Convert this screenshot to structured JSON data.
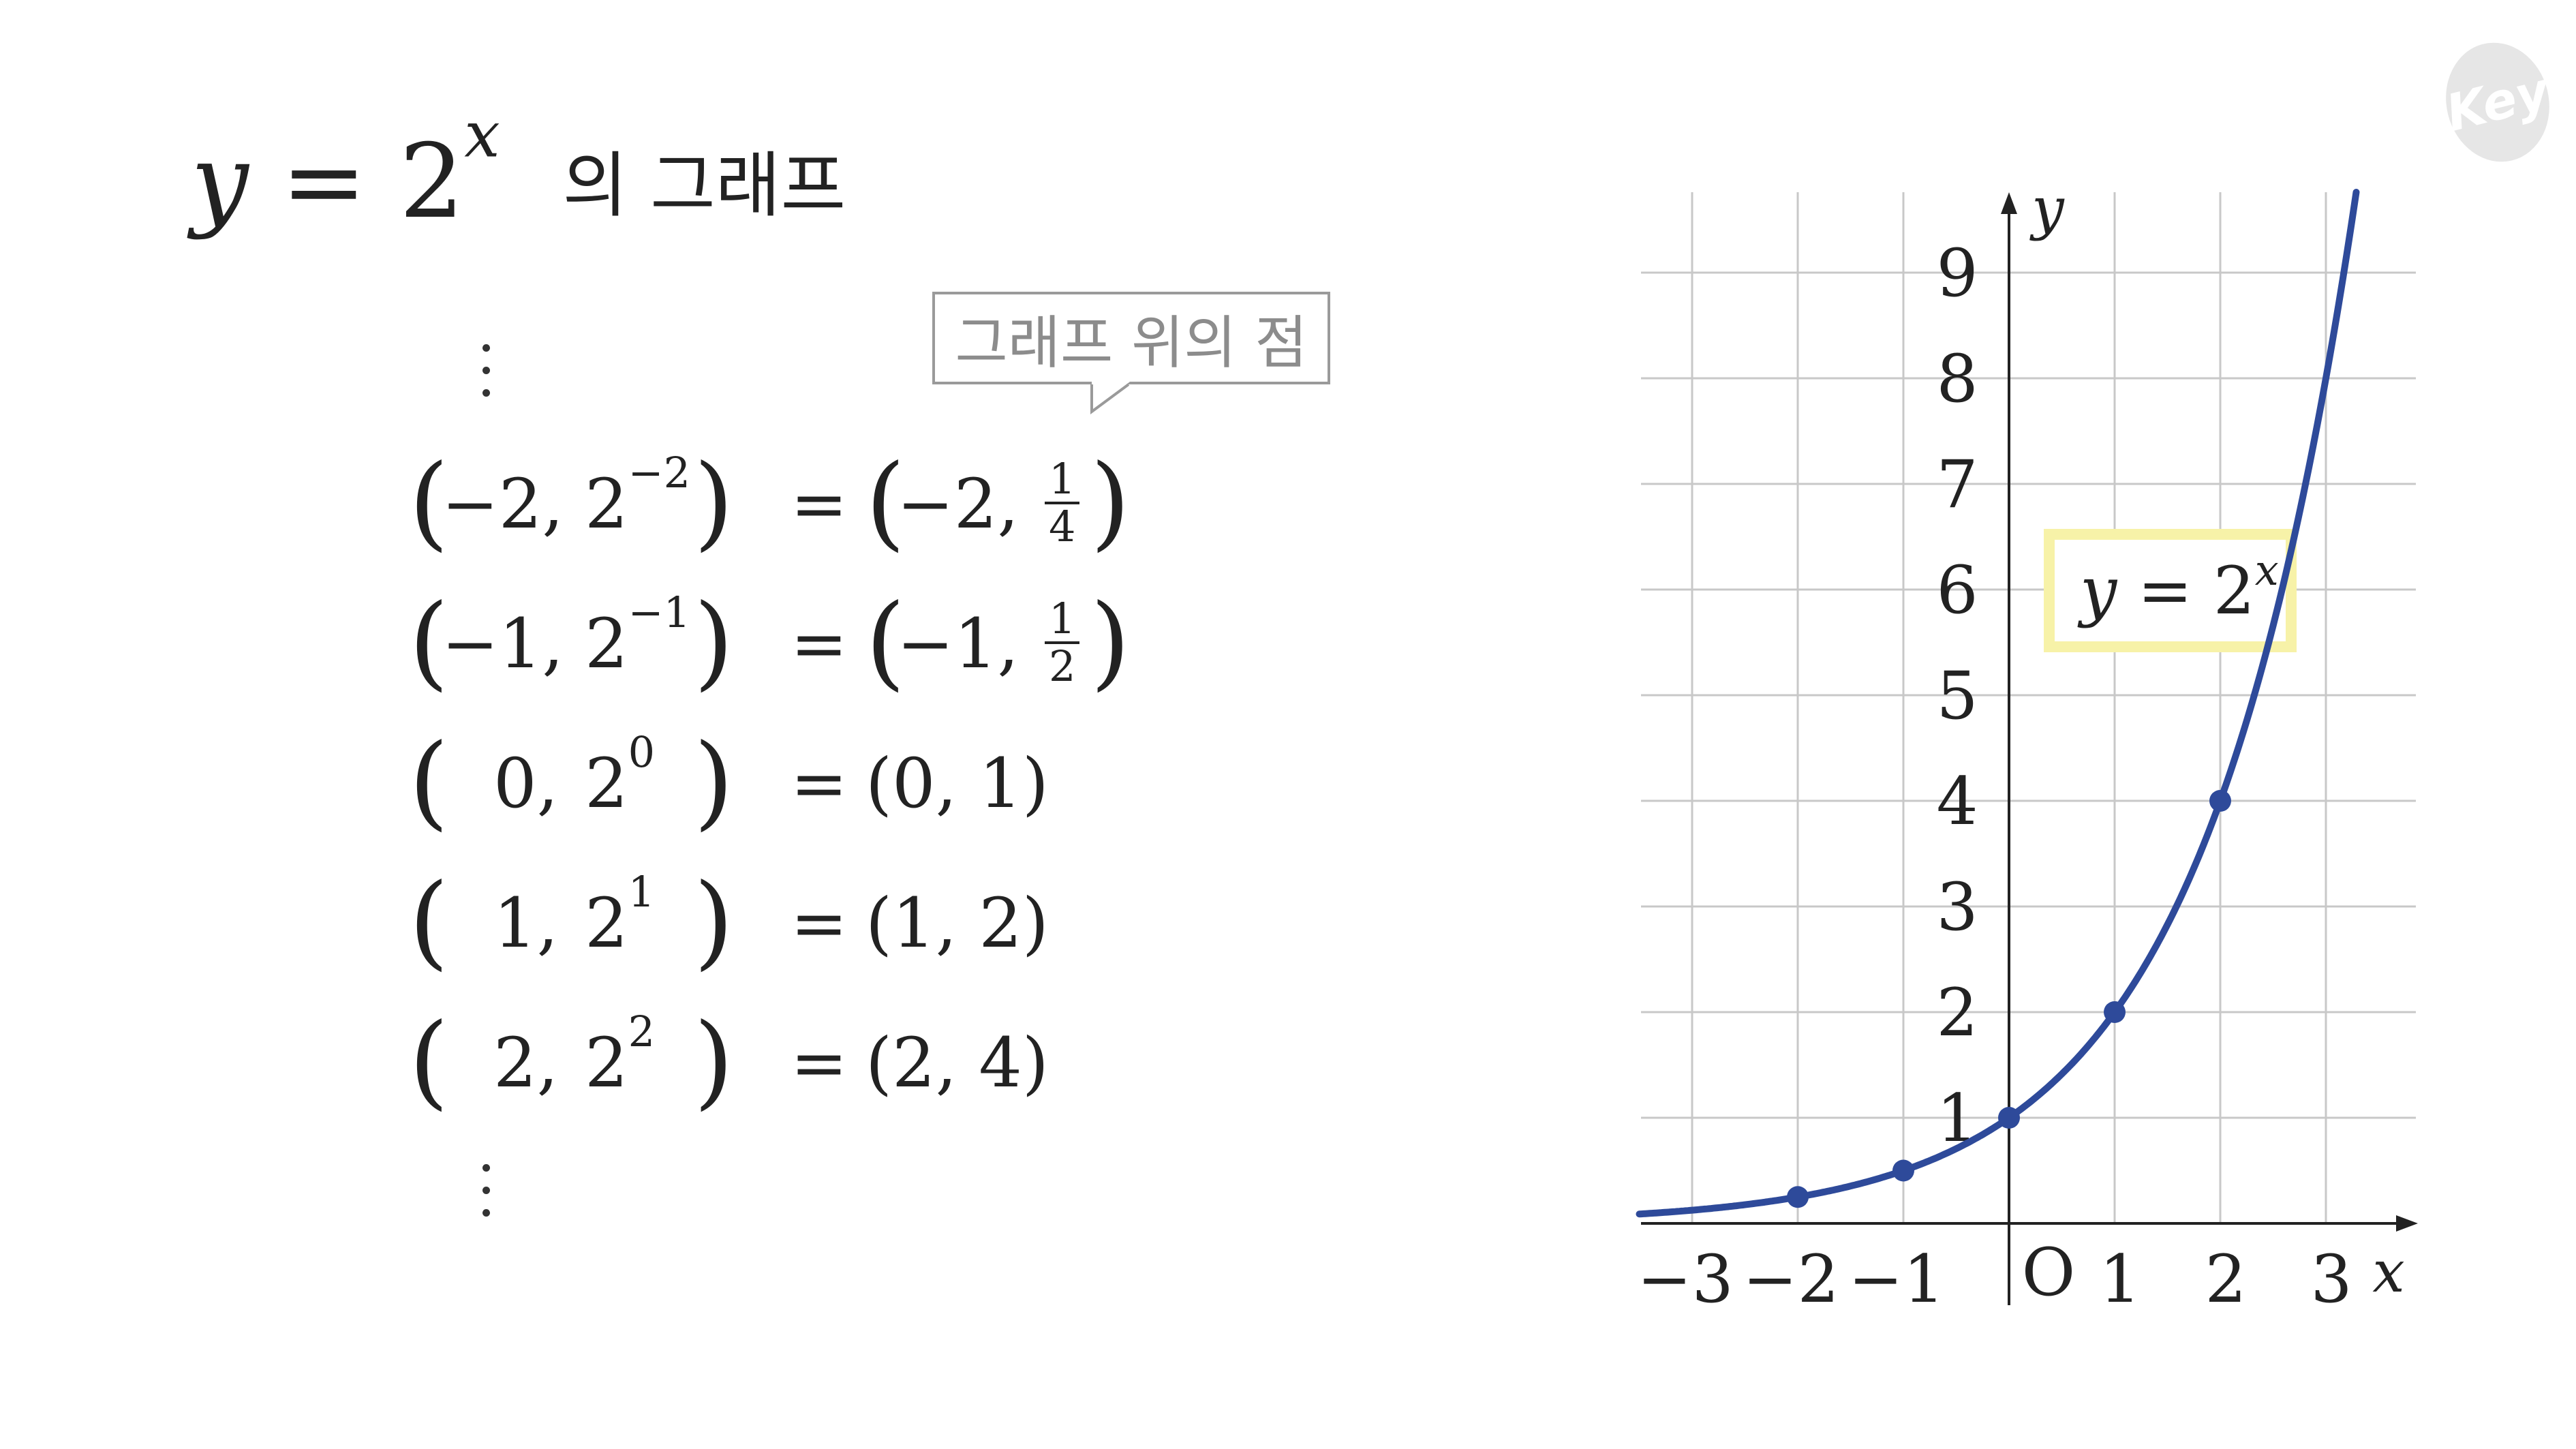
{
  "title": {
    "y": "y",
    "eq": "=",
    "base": "2",
    "exp": "x",
    "suffix": "의 그래프"
  },
  "callout": "그래프 위의 점",
  "rows": [
    {
      "x": "−2",
      "exp": "−2",
      "result_x": "−2",
      "result_y_num": "1",
      "result_y_den": "4",
      "fraction": true
    },
    {
      "x": "−1",
      "exp": "−1",
      "result_x": "−1",
      "result_y_num": "1",
      "result_y_den": "2",
      "fraction": true
    },
    {
      "x": "0",
      "exp": "0",
      "result": "(0,  1)",
      "fraction": false
    },
    {
      "x": "1",
      "exp": "1",
      "result": "(1,  2)",
      "fraction": false
    },
    {
      "x": "2",
      "exp": "2",
      "result": "(2,  4)",
      "fraction": false
    }
  ],
  "chart_data": {
    "type": "line",
    "function": "y = 2^x",
    "xlim": [
      -3.5,
      3.7
    ],
    "ylim": [
      0,
      9.7
    ],
    "grid": true,
    "x_ticks": [
      "−3",
      "−2",
      "−1",
      "1",
      "2",
      "3"
    ],
    "y_ticks": [
      "1",
      "2",
      "3",
      "4",
      "5",
      "6",
      "7",
      "8",
      "9"
    ],
    "x_tick_values": [
      -3,
      -2,
      -1,
      1,
      2,
      3
    ],
    "y_tick_values": [
      1,
      2,
      3,
      4,
      5,
      6,
      7,
      8,
      9
    ],
    "origin_label": "O",
    "xlabel": "x",
    "ylabel": "y",
    "series": [
      {
        "name": "y = 2^x",
        "color": "#2e4a9a",
        "points": [
          {
            "x": -2,
            "y": 0.25
          },
          {
            "x": -1,
            "y": 0.5
          },
          {
            "x": 0,
            "y": 1
          },
          {
            "x": 1,
            "y": 2
          },
          {
            "x": 2,
            "y": 4
          }
        ]
      }
    ],
    "label_box": {
      "lhs": "y",
      "eq": "=",
      "base": "2",
      "exp": "x",
      "border_color": "#f7f2a8"
    }
  },
  "logo": "Key"
}
